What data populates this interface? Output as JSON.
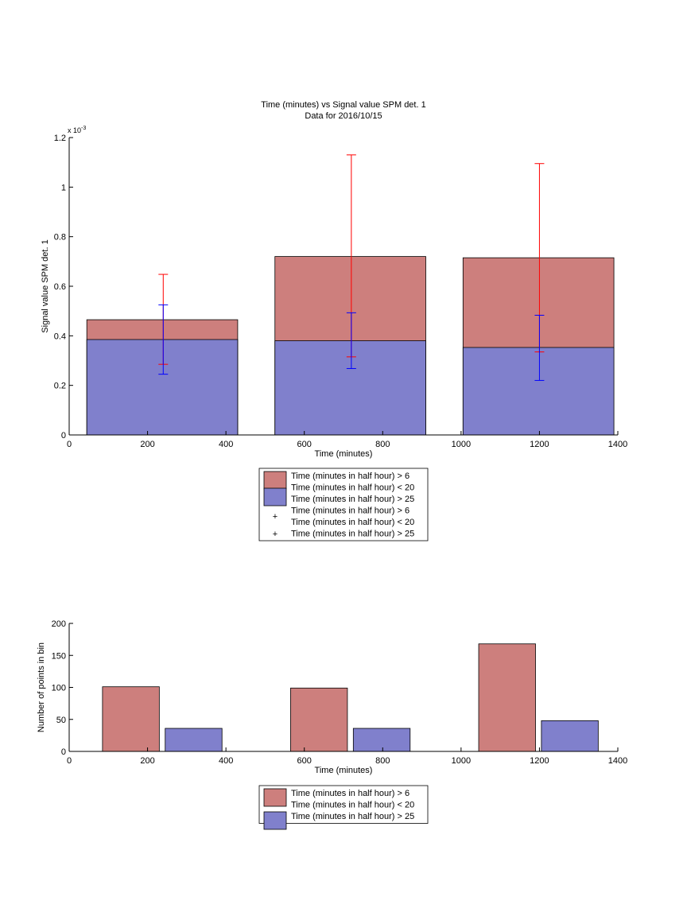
{
  "chart_data": [
    {
      "type": "bar",
      "title": "Time (minutes) vs Signal value SPM det. 1",
      "subtitle": "Data for 2016/10/15",
      "xlabel": "Time (minutes)",
      "ylabel": "Signal value SPM det. 1",
      "y_exponent_base": "x 10",
      "y_exponent_power": "-3",
      "xlim": [
        0,
        1400
      ],
      "ylim": [
        0,
        1.2
      ],
      "x_ticks": [
        "0",
        "200",
        "400",
        "600",
        "800",
        "1000",
        "1200",
        "1400"
      ],
      "y_ticks": [
        "0",
        "0.2",
        "0.4",
        "0.6",
        "0.8",
        "1",
        "1.2"
      ],
      "grid": false,
      "legend_position": "below",
      "bar_groups": [
        {
          "x_center": 240,
          "x_start": 45,
          "x_end": 430
        },
        {
          "x_center": 720,
          "x_start": 525,
          "x_end": 910
        },
        {
          "x_center": 1200,
          "x_start": 1005,
          "x_end": 1390
        }
      ],
      "series": [
        {
          "name": "Time (minutes in half hour) > 6\nTime (minutes in half hour) < 20",
          "color": "#cd7f7d",
          "mark": "bar",
          "values": [
            0.465,
            0.72,
            0.715
          ]
        },
        {
          "name": "Time (minutes in half hour) > 25",
          "color": "#8080cc",
          "mark": "bar",
          "values": [
            0.385,
            0.38,
            0.353
          ]
        },
        {
          "name": "Time (minutes in half hour) > 6\nTime (minutes in half hour) < 20",
          "color": "#ff0000",
          "mark": "errorbar",
          "x": [
            240,
            720,
            1200
          ],
          "lower": [
            0.285,
            0.315,
            0.335
          ],
          "upper": [
            0.648,
            1.13,
            1.095
          ]
        },
        {
          "name": "Time (minutes in half hour) > 25",
          "color": "#0000ff",
          "mark": "errorbar",
          "x": [
            240,
            720,
            1200
          ],
          "lower": [
            0.245,
            0.268,
            0.22
          ],
          "upper": [
            0.525,
            0.493,
            0.483
          ]
        }
      ]
    },
    {
      "type": "bar",
      "xlabel": "Time (minutes)",
      "ylabel": "Number of points in bin",
      "xlim": [
        0,
        1400
      ],
      "ylim": [
        0,
        200
      ],
      "x_ticks": [
        "0",
        "200",
        "400",
        "600",
        "800",
        "1000",
        "1200",
        "1400"
      ],
      "y_ticks": [
        "0",
        "50",
        "100",
        "150",
        "200"
      ],
      "grid": false,
      "legend_position": "below",
      "series": [
        {
          "name": "Time (minutes in half hour) > 6\nTime (minutes in half hour) < 20",
          "color": "#cd7f7d",
          "bars": [
            {
              "x_start": 85,
              "x_end": 230,
              "value": 101
            },
            {
              "x_start": 565,
              "x_end": 710,
              "value": 99
            },
            {
              "x_start": 1045,
              "x_end": 1190,
              "value": 168
            }
          ]
        },
        {
          "name": "Time (minutes in half hour) > 25",
          "color": "#8080cc",
          "bars": [
            {
              "x_start": 245,
              "x_end": 390,
              "value": 36
            },
            {
              "x_start": 725,
              "x_end": 870,
              "value": 36
            },
            {
              "x_start": 1205,
              "x_end": 1350,
              "value": 48
            }
          ]
        }
      ]
    }
  ]
}
